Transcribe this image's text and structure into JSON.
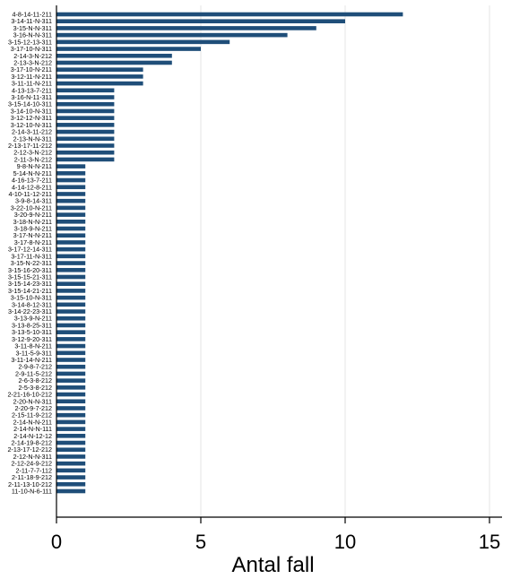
{
  "chart_data": {
    "type": "bar",
    "orientation": "horizontal",
    "categories": [
      "4-8-14-11-211",
      "3-14-11-N-311",
      "3-15-N-N-311",
      "3-16-N-N-311",
      "3-15-12-13-311",
      "3-17-10-N-311",
      "2-14-3-N-212",
      "2-13-3-N-212",
      "3-17-10-N-211",
      "3-12-11-N-211",
      "3-11-11-N-211",
      "4-13-13-7-211",
      "3-16-N-11-311",
      "3-15-14-10-311",
      "3-14-10-N-311",
      "3-12-12-N-311",
      "3-12-10-N-311",
      "2-14-3-11-212",
      "2-13-N-N-311",
      "2-13-17-11-212",
      "2-12-3-N-212",
      "2-11-3-N-212",
      "9-8-N-N-211",
      "5-14-N-N-211",
      "4-16-13-7-211",
      "4-14-12-8-211",
      "4-10-11-12-211",
      "3-9-8-14-311",
      "3-22-10-N-211",
      "3-20-9-N-211",
      "3-18-N-N-211",
      "3-18-9-N-211",
      "3-17-N-N-211",
      "3-17-8-N-211",
      "3-17-12-14-311",
      "3-17-11-N-311",
      "3-15-N-22-311",
      "3-15-16-20-311",
      "3-15-15-21-311",
      "3-15-14-23-311",
      "3-15-14-21-211",
      "3-15-10-N-311",
      "3-14-8-12-311",
      "3-14-22-23-311",
      "3-13-9-N-211",
      "3-13-8-25-311",
      "3-13-5-10-311",
      "3-12-9-20-311",
      "3-11-8-N-211",
      "3-11-5-9-311",
      "3-11-14-N-211",
      "2-9-8-7-212",
      "2-9-11-5-212",
      "2-6-3-8-212",
      "2-5-3-8-212",
      "2-21-16-10-212",
      "2-20-N-N-311",
      "2-20-9-7-212",
      "2-15-11-9-212",
      "2-14-N-N-211",
      "2-14-N-N-111",
      "2-14-N-12-12",
      "2-14-19-8-212",
      "2-13-17-12-212",
      "2-12-N-N-311",
      "2-12-24-9-212",
      "2-11-7-7-112",
      "2-11-18-9-212",
      "2-11-13-10-212",
      "11-10-N-6-111"
    ],
    "values": [
      12,
      10,
      9,
      8,
      6,
      5,
      4,
      4,
      3,
      3,
      3,
      2,
      2,
      2,
      2,
      2,
      2,
      2,
      2,
      2,
      2,
      2,
      1,
      1,
      1,
      1,
      1,
      1,
      1,
      1,
      1,
      1,
      1,
      1,
      1,
      1,
      1,
      1,
      1,
      1,
      1,
      1,
      1,
      1,
      1,
      1,
      1,
      1,
      1,
      1,
      1,
      1,
      1,
      1,
      1,
      1,
      1,
      1,
      1,
      1,
      1,
      1,
      1,
      1,
      1,
      1,
      1,
      1,
      1,
      1
    ],
    "title": "",
    "xlabel": "Antal fall",
    "ylabel": "",
    "xlim": [
      0,
      15
    ],
    "xticks": [
      "0",
      "5",
      "10",
      "15"
    ],
    "grid": "vertical",
    "legend": "none",
    "bar_color": "#1f4e79",
    "grid_color": "#e6e6e6",
    "axis_color": "#000000"
  }
}
